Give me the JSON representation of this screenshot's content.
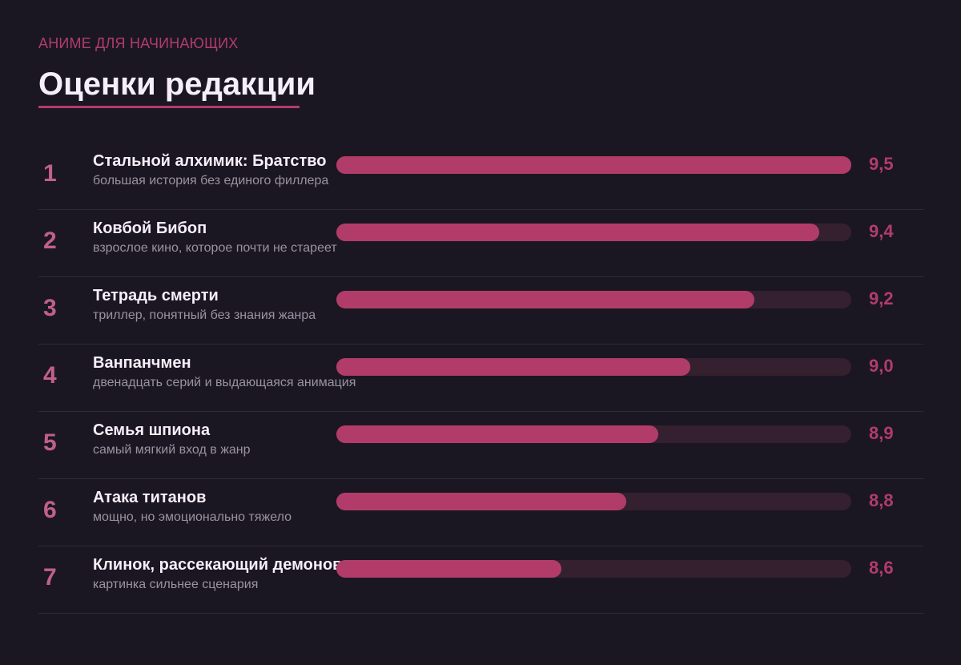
{
  "header": {
    "kicker": "АНИМЕ ДЛЯ НАЧИНАЮЩИХ",
    "title": "Оценки редакции"
  },
  "colors": {
    "background": "#1b1722",
    "accent": "#b13c6a",
    "track": "#34202f",
    "rank": "#c0608a",
    "title": "#f6eef8",
    "description": "#9a92a4"
  },
  "chart_data": {
    "type": "bar",
    "orientation": "horizontal",
    "title": "Оценки редакции",
    "subtitle": "АНИМЕ ДЛЯ НАЧИНАЮЩИХ",
    "xlim": [
      7.9,
      9.5
    ],
    "grid": false,
    "legend": "none",
    "items": [
      {
        "rank": "1",
        "name": "Стальной алхимик: Братство",
        "description": "большая история без единого филлера",
        "value": 9.5,
        "value_label": "9,5"
      },
      {
        "rank": "2",
        "name": "Ковбой Бибоп",
        "description": "взрослое кино, которое почти не стареет",
        "value": 9.4,
        "value_label": "9,4"
      },
      {
        "rank": "3",
        "name": "Тетрадь смерти",
        "description": "триллер, понятный без знания жанра",
        "value": 9.2,
        "value_label": "9,2"
      },
      {
        "rank": "4",
        "name": "Ванпанчмен",
        "description": "двенадцать серий и выдающаяся анимация",
        "value": 9.0,
        "value_label": "9,0"
      },
      {
        "rank": "5",
        "name": "Семья шпиона",
        "description": "самый мягкий вход в жанр",
        "value": 8.9,
        "value_label": "8,9"
      },
      {
        "rank": "6",
        "name": "Атака титанов",
        "description": "мощно, но эмоционально тяжело",
        "value": 8.8,
        "value_label": "8,8"
      },
      {
        "rank": "7",
        "name": "Клинок, рассекающий демонов",
        "description": "картинка сильнее сценария",
        "value": 8.6,
        "value_label": "8,6"
      }
    ]
  }
}
